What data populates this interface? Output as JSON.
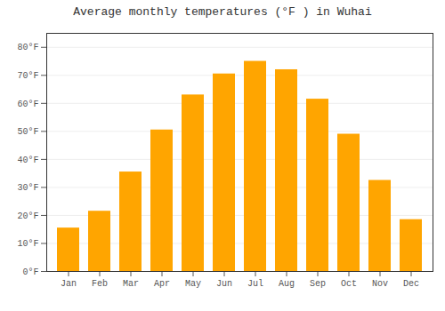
{
  "chart_data": {
    "type": "bar",
    "title": "Average monthly temperatures (°F ) in Wuhai",
    "categories": [
      "Jan",
      "Feb",
      "Mar",
      "Apr",
      "May",
      "Jun",
      "Jul",
      "Aug",
      "Sep",
      "Oct",
      "Nov",
      "Dec"
    ],
    "values": [
      15.5,
      21.5,
      35.5,
      50.5,
      63.0,
      70.5,
      75.0,
      72.0,
      61.5,
      49.0,
      32.5,
      18.5
    ],
    "color": "#FFA500",
    "ylim": [
      0,
      85
    ],
    "yticks": [
      {
        "value": 0,
        "label": "0°F"
      },
      {
        "value": 10,
        "label": "10°F"
      },
      {
        "value": 20,
        "label": "20°F"
      },
      {
        "value": 30,
        "label": "30°F"
      },
      {
        "value": 40,
        "label": "40°F"
      },
      {
        "value": 50,
        "label": "50°F"
      },
      {
        "value": 60,
        "label": "60°F"
      },
      {
        "value": 70,
        "label": "70°F"
      },
      {
        "value": 80,
        "label": "80°F"
      }
    ],
    "grid": true
  }
}
